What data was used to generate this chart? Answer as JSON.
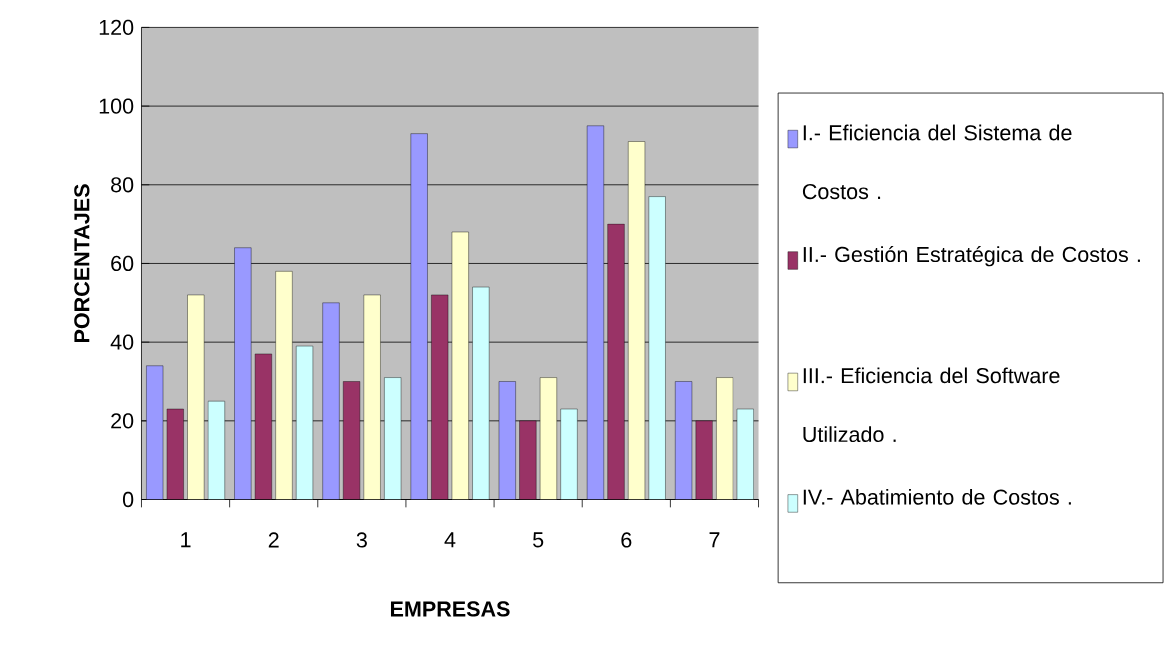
{
  "chart_data": {
    "type": "bar",
    "xlabel": "EMPRESAS",
    "ylabel": "PORCENTAJES",
    "categories": [
      "1",
      "2",
      "3",
      "4",
      "5",
      "6",
      "7"
    ],
    "series": [
      {
        "name": "I.- Eficiencia del Sistema de Costos .",
        "color": "#9999ff",
        "values": [
          34,
          64,
          50,
          93,
          30,
          95,
          30
        ]
      },
      {
        "name": "II.- Gestión Estratégica de Costos .",
        "color": "#993366",
        "values": [
          23,
          37,
          30,
          52,
          20,
          70,
          20
        ]
      },
      {
        "name": "III.- Eficiencia del Software Utilizado .",
        "color": "#ffffcc",
        "values": [
          52,
          58,
          52,
          68,
          31,
          91,
          31
        ]
      },
      {
        "name": "IV.- Abatimiento de Costos .",
        "color": "#ccffff",
        "values": [
          25,
          39,
          31,
          54,
          23,
          77,
          23
        ]
      }
    ],
    "ylim": [
      0,
      120
    ],
    "yticks": [
      0,
      20,
      40,
      60,
      80,
      100,
      120
    ],
    "grid": "y",
    "legend": "right"
  }
}
